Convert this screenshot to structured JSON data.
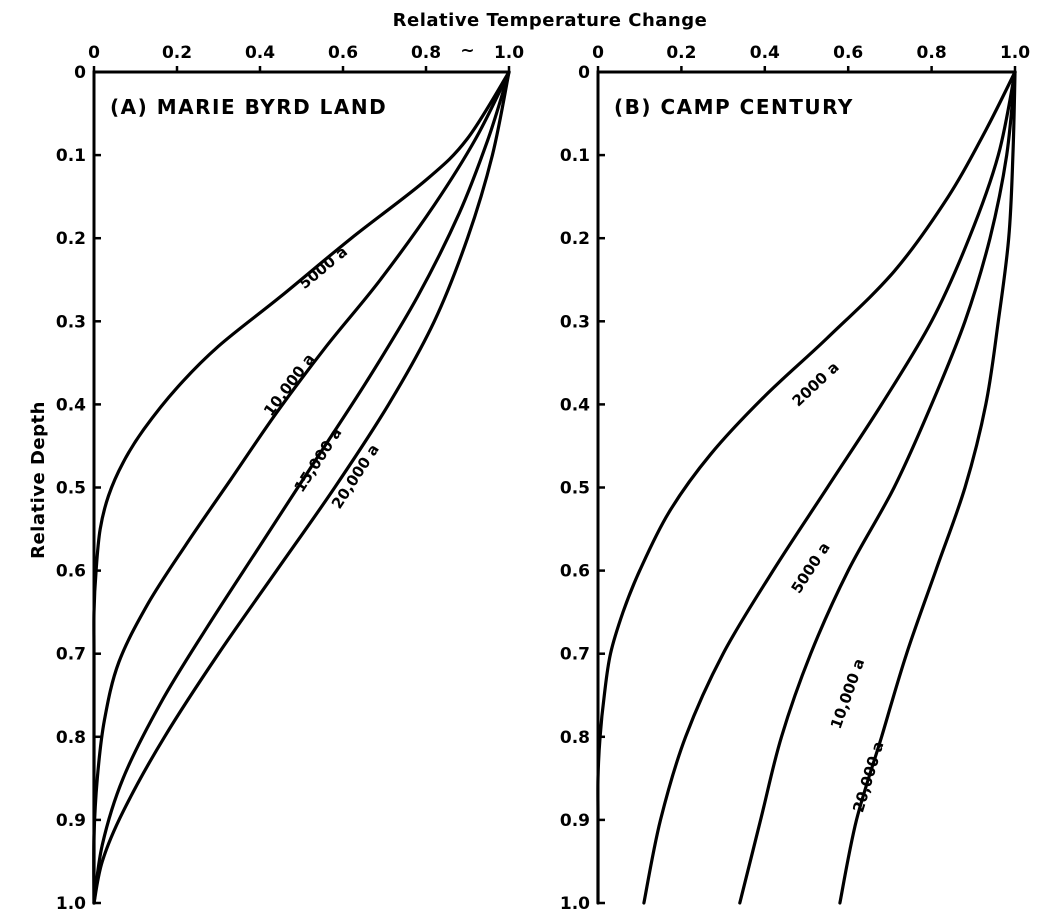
{
  "chart_data": [
    {
      "type": "line",
      "title": "(A) MARIE BYRD LAND",
      "xlabel": "Relative Temperature Change",
      "ylabel": "Relative Depth",
      "xlim": [
        0,
        1.0
      ],
      "ylim": [
        0,
        1.0
      ],
      "y_inverted": true,
      "x_ticks": [
        "0",
        "0.2",
        "0.4",
        "0.6",
        "0.8",
        "1.0"
      ],
      "x_extra_mark": "~",
      "y_ticks": [
        "0",
        "0.1",
        "0.2",
        "0.3",
        "0.4",
        "0.5",
        "0.6",
        "0.7",
        "0.8",
        "0.9",
        "1.0"
      ],
      "grid": false,
      "series": [
        {
          "name": "5000 a",
          "x": [
            1.0,
            0.9,
            0.8,
            0.62,
            0.45,
            0.3,
            0.2,
            0.12,
            0.07,
            0.035,
            0.015,
            0.005,
            0.0,
            0.0,
            0.0,
            0.0,
            0.0
          ],
          "y": [
            0.0,
            0.08,
            0.13,
            0.2,
            0.27,
            0.33,
            0.38,
            0.43,
            0.47,
            0.51,
            0.55,
            0.6,
            0.65,
            0.7,
            0.8,
            0.9,
            1.0
          ]
        },
        {
          "name": "10,000 a",
          "x": [
            1.0,
            0.92,
            0.82,
            0.69,
            0.56,
            0.44,
            0.33,
            0.22,
            0.13,
            0.06,
            0.025,
            0.008,
            0.0,
            0.0
          ],
          "y": [
            0.0,
            0.08,
            0.16,
            0.25,
            0.33,
            0.41,
            0.49,
            0.57,
            0.64,
            0.71,
            0.78,
            0.85,
            0.92,
            1.0
          ]
        },
        {
          "name": "15,000 a",
          "x": [
            1.0,
            0.95,
            0.88,
            0.78,
            0.66,
            0.53,
            0.4,
            0.27,
            0.16,
            0.07,
            0.02,
            0.0
          ],
          "y": [
            0.0,
            0.08,
            0.17,
            0.27,
            0.37,
            0.47,
            0.57,
            0.67,
            0.76,
            0.85,
            0.93,
            1.0
          ]
        },
        {
          "name": "20,000 a",
          "x": [
            1.0,
            0.96,
            0.9,
            0.82,
            0.71,
            0.58,
            0.44,
            0.3,
            0.17,
            0.07,
            0.02,
            0.0
          ],
          "y": [
            0.0,
            0.1,
            0.2,
            0.3,
            0.4,
            0.5,
            0.6,
            0.7,
            0.8,
            0.89,
            0.95,
            1.0
          ]
        }
      ]
    },
    {
      "type": "line",
      "title": "(B) CAMP CENTURY",
      "xlabel": "",
      "ylabel": "",
      "xlim": [
        0,
        1.0
      ],
      "ylim": [
        0,
        1.0
      ],
      "y_inverted": true,
      "x_ticks": [
        "0",
        "0.2",
        "0.4",
        "0.6",
        "0.8",
        "1.0"
      ],
      "y_ticks": [
        "0",
        "0.1",
        "0.2",
        "0.3",
        "0.4",
        "0.5",
        "0.6",
        "0.7",
        "0.8",
        "0.9",
        "1.0"
      ],
      "grid": false,
      "series": [
        {
          "name": "2000 a",
          "x": [
            1.0,
            0.93,
            0.84,
            0.71,
            0.55,
            0.4,
            0.27,
            0.17,
            0.1,
            0.06,
            0.03,
            0.015,
            0.005,
            0.0,
            0.0,
            0.0
          ],
          "y": [
            0.0,
            0.07,
            0.15,
            0.24,
            0.32,
            0.39,
            0.46,
            0.53,
            0.6,
            0.65,
            0.7,
            0.75,
            0.8,
            0.85,
            0.9,
            1.0
          ]
        },
        {
          "name": "5000 a",
          "x": [
            1.0,
            0.96,
            0.89,
            0.8,
            0.68,
            0.55,
            0.42,
            0.3,
            0.21,
            0.15,
            0.11
          ],
          "y": [
            0.0,
            0.1,
            0.2,
            0.3,
            0.4,
            0.5,
            0.6,
            0.7,
            0.8,
            0.9,
            1.0
          ]
        },
        {
          "name": "10,000 a",
          "x": [
            1.0,
            0.98,
            0.94,
            0.88,
            0.8,
            0.71,
            0.6,
            0.51,
            0.44,
            0.39,
            0.34
          ],
          "y": [
            0.0,
            0.1,
            0.2,
            0.3,
            0.4,
            0.5,
            0.6,
            0.7,
            0.8,
            0.9,
            1.0
          ]
        },
        {
          "name": "20,000 a",
          "x": [
            1.0,
            0.995,
            0.985,
            0.96,
            0.93,
            0.88,
            0.81,
            0.74,
            0.68,
            0.62,
            0.58
          ],
          "y": [
            0.0,
            0.1,
            0.2,
            0.3,
            0.4,
            0.5,
            0.6,
            0.7,
            0.8,
            0.9,
            1.0
          ]
        }
      ]
    }
  ]
}
